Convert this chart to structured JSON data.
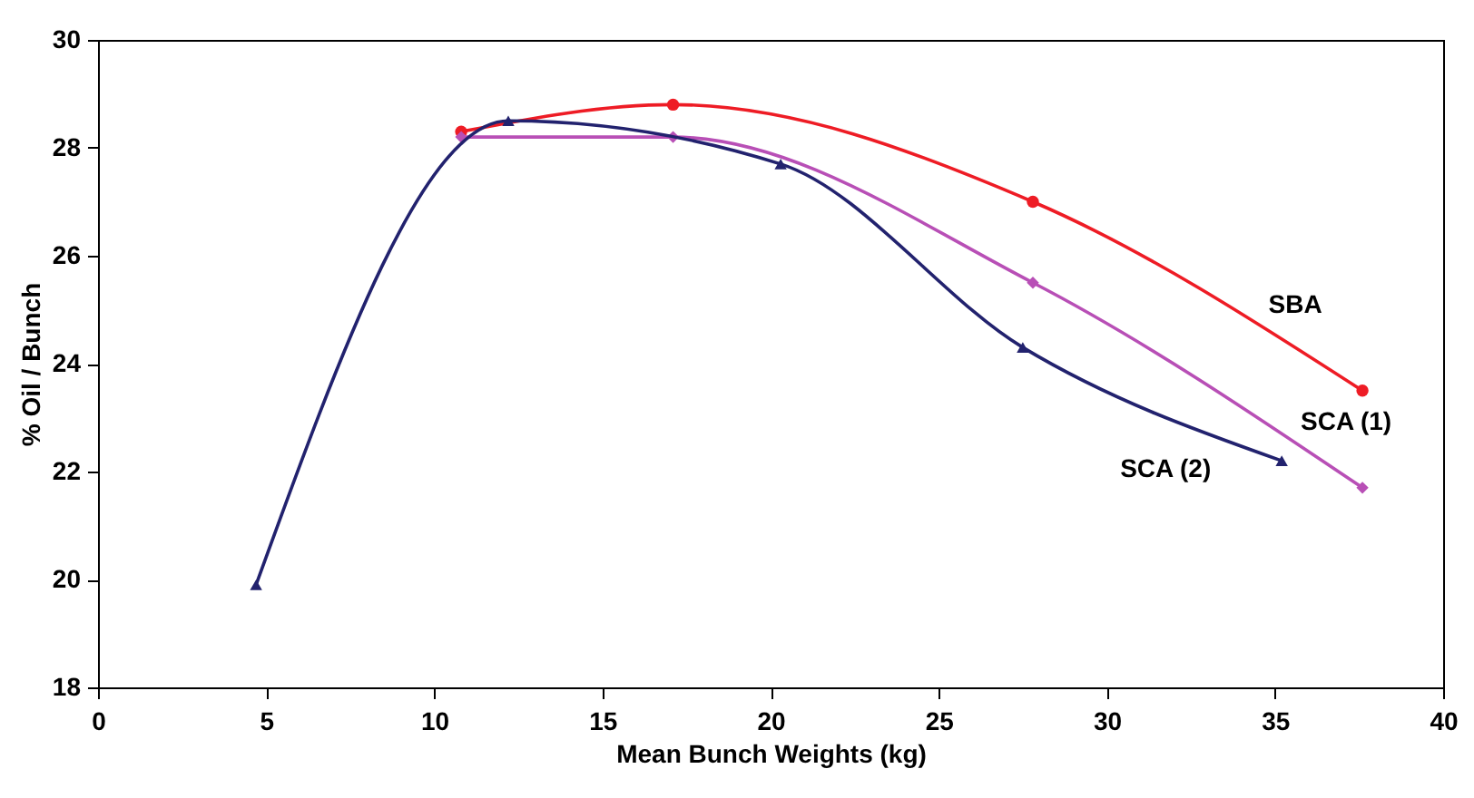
{
  "chart_data": {
    "type": "line",
    "xlabel": "Mean Bunch Weights (kg)",
    "ylabel": "% Oil / Bunch",
    "xlim": [
      0,
      40
    ],
    "xticks": [
      0,
      5,
      10,
      15,
      20,
      25,
      30,
      35,
      40
    ],
    "ylim": [
      18,
      30
    ],
    "yticks": [
      18,
      20,
      22,
      24,
      26,
      28,
      30
    ],
    "grid": false,
    "legend": false,
    "series": [
      {
        "name": "SBA",
        "color": "#ee1c25",
        "marker": "circle",
        "x": [
          10.8,
          17.1,
          27.8,
          37.6
        ],
        "values": [
          28.3,
          28.8,
          27.0,
          23.5
        ]
      },
      {
        "name": "SCA (1)",
        "color": "#b84fb6",
        "marker": "diamond",
        "x": [
          10.8,
          17.1,
          27.8,
          37.6
        ],
        "values": [
          28.2,
          28.2,
          25.5,
          21.7
        ]
      },
      {
        "name": "SCA  (2)",
        "color": "#22226e",
        "marker": "triangle",
        "x": [
          4.7,
          12.2,
          20.3,
          27.5,
          35.2
        ],
        "values": [
          19.9,
          28.5,
          27.7,
          24.3,
          22.2
        ]
      }
    ]
  }
}
